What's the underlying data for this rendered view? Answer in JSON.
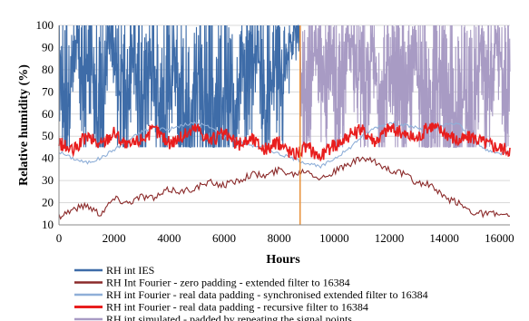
{
  "chart_data": {
    "type": "line",
    "title": "",
    "xlabel": "Hours",
    "ylabel": "Relative humidity (%)",
    "xlim": [
      0,
      16384
    ],
    "ylim": [
      10,
      100
    ],
    "xticks": [
      0,
      2000,
      4000,
      6000,
      8000,
      10000,
      12000,
      14000,
      16000
    ],
    "yticks": [
      10,
      20,
      30,
      40,
      50,
      60,
      70,
      80,
      90,
      100
    ],
    "grid": "horizontal",
    "legend_position": "bottom",
    "vertical_marker": {
      "x": 8760,
      "color": "#E8913A"
    },
    "series": [
      {
        "name": "RH int IES",
        "color": "#3E6CA8",
        "range": [
          0,
          8760
        ],
        "x": [
          0,
          300,
          600,
          900,
          1200,
          1500,
          1800,
          2100,
          2400,
          2700,
          3000,
          3300,
          3600,
          3900,
          4200,
          4500,
          4800,
          5100,
          5400,
          5700,
          6000,
          6300,
          6600,
          6900,
          7200,
          7500,
          7800,
          8100,
          8400,
          8760
        ],
        "values": [
          85,
          62,
          95,
          72,
          88,
          58,
          96,
          80,
          67,
          92,
          60,
          86,
          74,
          55,
          90,
          64,
          50,
          78,
          60,
          48,
          70,
          58,
          88,
          72,
          95,
          66,
          85,
          74,
          92,
          100
        ]
      },
      {
        "name": "RH Int Fourier - zero padding - extended filter to 16384",
        "color": "#8B2A2A",
        "x": [
          0,
          500,
          1000,
          1500,
          2000,
          2500,
          3000,
          3500,
          4000,
          4500,
          5000,
          5500,
          6000,
          6500,
          7000,
          7500,
          8000,
          8500,
          9000,
          9500,
          10000,
          10500,
          11000,
          11500,
          12000,
          12500,
          13000,
          13500,
          14000,
          14500,
          15000,
          15500,
          16000,
          16384
        ],
        "values": [
          14,
          17,
          19,
          15,
          22,
          20,
          23,
          22,
          26,
          25,
          27,
          29,
          28,
          30,
          33,
          32,
          35,
          33,
          35,
          31,
          34,
          37,
          40,
          38,
          35,
          33,
          29,
          28,
          22,
          20,
          16,
          15,
          15,
          13
        ]
      },
      {
        "name": "RH int Fourier - real data padding - synchronised extended filter to 16384",
        "color": "#8FAFD8",
        "x": [
          0,
          500,
          1000,
          1500,
          2000,
          2500,
          3000,
          3500,
          4000,
          4500,
          5000,
          5500,
          6000,
          6500,
          7000,
          7500,
          8000,
          8500,
          9000,
          9500,
          10000,
          10500,
          11000,
          11500,
          12000,
          12500,
          13000,
          13500,
          14000,
          14500,
          15000,
          15500,
          16000,
          16384
        ],
        "values": [
          43,
          40,
          38,
          40,
          44,
          48,
          52,
          54,
          53,
          55,
          56,
          54,
          50,
          48,
          46,
          45,
          42,
          40,
          38,
          36,
          40,
          44,
          50,
          54,
          56,
          55,
          54,
          52,
          55,
          56,
          48,
          44,
          42,
          44
        ]
      },
      {
        "name": "RH int Fourier - real data padding - recursive filter to 16384",
        "color": "#E81E1E",
        "x": [
          0,
          500,
          1000,
          1500,
          2000,
          2500,
          3000,
          3500,
          4000,
          4500,
          5000,
          5500,
          6000,
          6500,
          7000,
          7500,
          8000,
          8500,
          9000,
          9500,
          10000,
          10500,
          11000,
          11500,
          12000,
          12500,
          13000,
          13500,
          14000,
          14500,
          15000,
          15500,
          16000,
          16384
        ],
        "values": [
          47,
          43,
          50,
          46,
          52,
          45,
          49,
          53,
          47,
          50,
          54,
          48,
          51,
          46,
          49,
          44,
          47,
          42,
          45,
          41,
          46,
          50,
          53,
          48,
          54,
          51,
          49,
          55,
          52,
          48,
          50,
          47,
          45,
          44
        ]
      },
      {
        "name": "RH int simulated - padded by repeating the signal points",
        "color": "#A89BC4",
        "range": [
          8760,
          16384
        ],
        "x": [
          8760,
          9000,
          9300,
          9600,
          9900,
          10200,
          10500,
          10800,
          11100,
          11400,
          11700,
          12000,
          12300,
          12600,
          12900,
          13200,
          13500,
          13800,
          14100,
          14400,
          14700,
          15000,
          15300,
          15600,
          15900,
          16200,
          16384
        ],
        "values": [
          85,
          62,
          95,
          72,
          88,
          58,
          96,
          80,
          67,
          92,
          60,
          86,
          74,
          55,
          90,
          64,
          50,
          78,
          60,
          48,
          70,
          58,
          88,
          72,
          95,
          66,
          85
        ]
      }
    ]
  }
}
